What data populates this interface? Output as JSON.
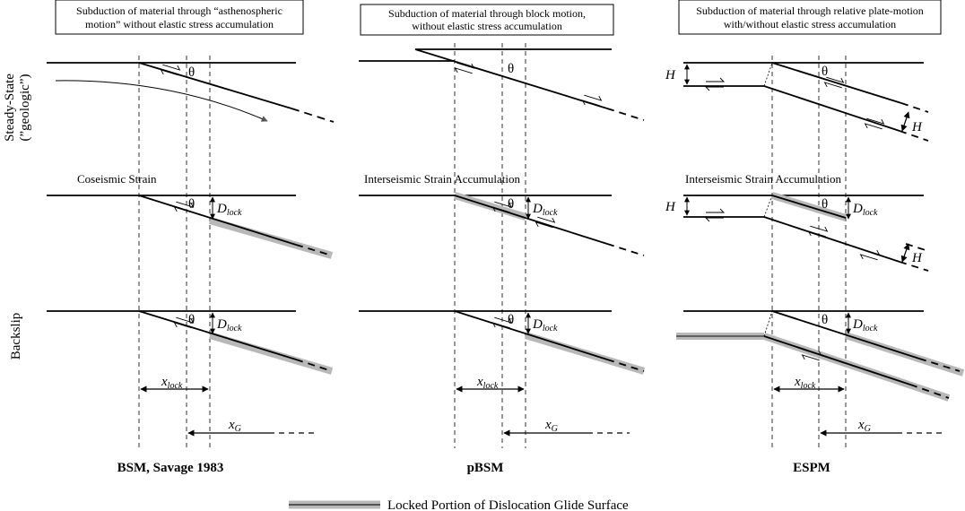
{
  "headers": [
    {
      "line1": "Subduction of material through “asthenospheric",
      "line2": "motion” without elastic stress accumulation"
    },
    {
      "line1": "Subduction of material through block motion,",
      "line2": "without elastic stress accumulation"
    },
    {
      "line1": "Subduction of material through relative plate-motion",
      "line2": "with/without elastic stress accumulation"
    }
  ],
  "row_labels": {
    "steady_state_line1": "Steady-State",
    "steady_state_line2": "(”geologic”)",
    "backslip": "Backslip"
  },
  "panel_labels": {
    "coseismic": "Coseismic Strain",
    "interseismic_pbsm": "Interseismic Strain Accumulation",
    "interseismic_espm": "Interseismic Strain Accumulation"
  },
  "symbols": {
    "theta": "θ",
    "H": "H",
    "D": "D",
    "lock": "lock",
    "x": "x",
    "G": "G"
  },
  "models": [
    "BSM, Savage 1983",
    "pBSM",
    "ESPM"
  ],
  "legend": {
    "label": "Locked Portion of Dislocation Glide Surface"
  },
  "colors": {
    "locked_outer": "#b8b8b8",
    "locked_inner": "#555555",
    "arrow_gray": "#555555"
  }
}
